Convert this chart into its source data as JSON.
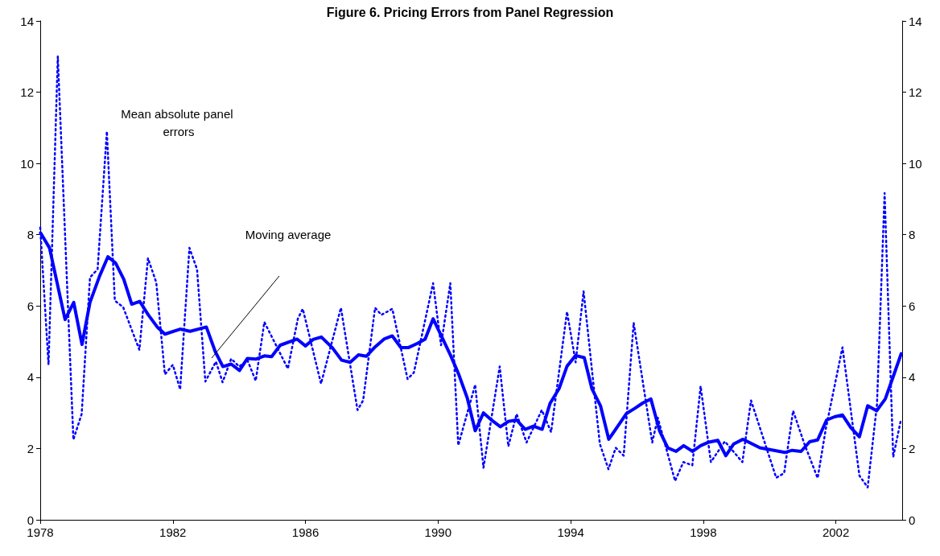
{
  "chart_data": {
    "type": "line",
    "title": "Figure 6. Pricing Errors from Panel Regression",
    "xlim": [
      1978,
      2004
    ],
    "xticks": [
      1978,
      1982,
      1986,
      1990,
      1994,
      1998,
      2002
    ],
    "ylim": [
      0,
      14
    ],
    "yticks": [
      0,
      2,
      4,
      6,
      8,
      10,
      12,
      14
    ],
    "y2lim": [
      0,
      14
    ],
    "y2ticks": [
      0,
      2,
      4,
      6,
      8,
      10,
      12,
      14
    ],
    "grid": false,
    "marker": "none",
    "annotations": [
      "Mean absolute panel errors",
      "Moving average"
    ],
    "series": [
      {
        "color": "#0000ff",
        "line_style": "dotted",
        "x": [
          1978.0,
          1978.25,
          1978.53,
          1979.0,
          1979.25,
          1979.5,
          1979.73,
          1980.01,
          1980.25,
          1980.5,
          1980.99,
          1981.25,
          1981.5,
          1981.76,
          1982.0,
          1982.22,
          1982.5,
          1982.73,
          1982.98,
          1983.3,
          1983.5,
          1983.76,
          1984.0,
          1984.25,
          1984.5,
          1984.76,
          1985.47,
          1985.77,
          1985.92,
          1986.47,
          1987.07,
          1987.57,
          1987.74,
          1988.1,
          1988.29,
          1988.62,
          1989.08,
          1989.27,
          1989.85,
          1990.09,
          1990.37,
          1990.61,
          1991.12,
          1991.37,
          1991.86,
          1992.12,
          1992.37,
          1992.67,
          1993.13,
          1993.41,
          1993.89,
          1994.15,
          1994.39,
          1994.88,
          1995.14,
          1995.36,
          1995.6,
          1995.9,
          1996.46,
          1996.63,
          1997.15,
          1997.4,
          1997.67,
          1997.92,
          1998.23,
          1998.65,
          1999.18,
          1999.44,
          2000.2,
          2000.44,
          2000.71,
          2001.05,
          2001.45,
          2001.7,
          2002.2,
          2002.71,
          2002.96,
          2003.24,
          2003.47,
          2003.73,
          2003.96
        ],
        "values": [
          8.2,
          4.35,
          13.0,
          2.25,
          2.97,
          6.8,
          7.03,
          10.9,
          6.15,
          5.97,
          4.77,
          7.34,
          6.66,
          4.08,
          4.35,
          3.66,
          7.63,
          7.03,
          3.88,
          4.44,
          3.86,
          4.52,
          4.3,
          4.48,
          3.9,
          5.55,
          4.24,
          5.64,
          5.92,
          3.82,
          5.95,
          3.08,
          3.35,
          5.95,
          5.75,
          5.92,
          3.95,
          4.13,
          6.64,
          4.9,
          6.64,
          2.09,
          3.79,
          1.46,
          4.3,
          2.06,
          2.97,
          2.17,
          3.08,
          2.46,
          5.84,
          4.42,
          6.41,
          2.13,
          1.42,
          2.02,
          1.8,
          5.53,
          2.17,
          2.86,
          1.09,
          1.62,
          1.53,
          3.75,
          1.62,
          2.2,
          1.62,
          3.35,
          1.18,
          1.31,
          3.06,
          2.13,
          1.17,
          2.57,
          4.84,
          1.24,
          0.91,
          3.24,
          9.17,
          1.76,
          2.8
        ]
      },
      {
        "color": "#0000ff",
        "line_style": "solid",
        "x": [
          1978.01,
          1978.28,
          1978.75,
          1979.01,
          1979.26,
          1979.5,
          1979.79,
          1980.04,
          1980.27,
          1980.52,
          1980.76,
          1981.0,
          1981.26,
          1981.53,
          1981.76,
          1982.22,
          1982.52,
          1983.01,
          1983.28,
          1983.51,
          1983.76,
          1984.01,
          1984.25,
          1984.5,
          1984.76,
          1984.98,
          1985.24,
          1985.75,
          1986.0,
          1986.23,
          1986.48,
          1986.81,
          1987.09,
          1987.35,
          1987.6,
          1987.84,
          1988.1,
          1988.37,
          1988.62,
          1988.88,
          1989.1,
          1989.38,
          1989.61,
          1989.85,
          1990.11,
          1990.38,
          1990.62,
          1990.88,
          1991.12,
          1991.37,
          1991.64,
          1991.88,
          1992.12,
          1992.37,
          1992.63,
          1992.88,
          1993.14,
          1993.38,
          1993.65,
          1993.89,
          1994.15,
          1994.41,
          1994.64,
          1994.9,
          1995.15,
          1995.41,
          1995.68,
          1995.94,
          1996.18,
          1996.42,
          1996.68,
          1996.93,
          1997.18,
          1997.41,
          1997.68,
          1997.92,
          1998.17,
          1998.44,
          1998.68,
          1998.92,
          1999.2,
          1999.71,
          2000.46,
          2000.68,
          2000.95,
          2001.21,
          2001.45,
          2001.72,
          2001.96,
          2002.2,
          2002.45,
          2002.71,
          2002.96,
          2003.23,
          2003.49,
          2003.73,
          2003.97
        ],
        "values": [
          8.05,
          7.63,
          5.62,
          6.1,
          4.92,
          6.1,
          6.84,
          7.38,
          7.21,
          6.75,
          6.05,
          6.13,
          5.75,
          5.41,
          5.21,
          5.35,
          5.29,
          5.41,
          4.72,
          4.3,
          4.37,
          4.19,
          4.53,
          4.51,
          4.6,
          4.58,
          4.9,
          5.07,
          4.88,
          5.06,
          5.13,
          4.83,
          4.48,
          4.42,
          4.63,
          4.59,
          4.85,
          5.07,
          5.16,
          4.83,
          4.83,
          4.95,
          5.07,
          5.64,
          5.14,
          4.61,
          4.09,
          3.42,
          2.5,
          3.0,
          2.78,
          2.61,
          2.76,
          2.8,
          2.54,
          2.63,
          2.54,
          3.27,
          3.68,
          4.31,
          4.61,
          4.55,
          3.68,
          3.2,
          2.26,
          2.61,
          2.98,
          3.13,
          3.28,
          3.39,
          2.5,
          2.02,
          1.92,
          2.08,
          1.92,
          2.08,
          2.18,
          2.23,
          1.8,
          2.13,
          2.26,
          2.02,
          1.89,
          1.95,
          1.92,
          2.19,
          2.24,
          2.8,
          2.89,
          2.94,
          2.59,
          2.33,
          3.2,
          3.06,
          3.39,
          4.02,
          4.66
        ]
      }
    ]
  }
}
